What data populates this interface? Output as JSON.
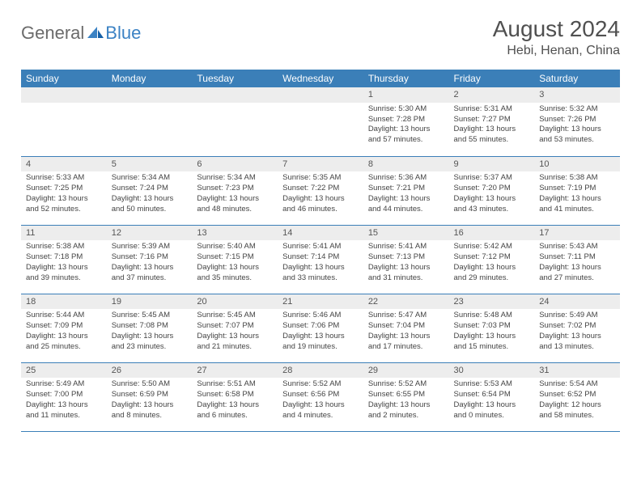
{
  "brand": {
    "name1": "General",
    "name2": "Blue"
  },
  "title": "August 2024",
  "location": "Hebi, Henan, China",
  "colors": {
    "header_bg": "#3b7fb8",
    "header_text": "#ffffff",
    "daynum_bg": "#ededed",
    "row_border": "#3b7fb8",
    "body_text": "#444444",
    "logo_gray": "#6b6b6b",
    "logo_blue": "#3b82c4"
  },
  "weekdays": [
    "Sunday",
    "Monday",
    "Tuesday",
    "Wednesday",
    "Thursday",
    "Friday",
    "Saturday"
  ],
  "weeks": [
    [
      {
        "n": "",
        "t": ""
      },
      {
        "n": "",
        "t": ""
      },
      {
        "n": "",
        "t": ""
      },
      {
        "n": "",
        "t": ""
      },
      {
        "n": "1",
        "t": "Sunrise: 5:30 AM\nSunset: 7:28 PM\nDaylight: 13 hours and 57 minutes."
      },
      {
        "n": "2",
        "t": "Sunrise: 5:31 AM\nSunset: 7:27 PM\nDaylight: 13 hours and 55 minutes."
      },
      {
        "n": "3",
        "t": "Sunrise: 5:32 AM\nSunset: 7:26 PM\nDaylight: 13 hours and 53 minutes."
      }
    ],
    [
      {
        "n": "4",
        "t": "Sunrise: 5:33 AM\nSunset: 7:25 PM\nDaylight: 13 hours and 52 minutes."
      },
      {
        "n": "5",
        "t": "Sunrise: 5:34 AM\nSunset: 7:24 PM\nDaylight: 13 hours and 50 minutes."
      },
      {
        "n": "6",
        "t": "Sunrise: 5:34 AM\nSunset: 7:23 PM\nDaylight: 13 hours and 48 minutes."
      },
      {
        "n": "7",
        "t": "Sunrise: 5:35 AM\nSunset: 7:22 PM\nDaylight: 13 hours and 46 minutes."
      },
      {
        "n": "8",
        "t": "Sunrise: 5:36 AM\nSunset: 7:21 PM\nDaylight: 13 hours and 44 minutes."
      },
      {
        "n": "9",
        "t": "Sunrise: 5:37 AM\nSunset: 7:20 PM\nDaylight: 13 hours and 43 minutes."
      },
      {
        "n": "10",
        "t": "Sunrise: 5:38 AM\nSunset: 7:19 PM\nDaylight: 13 hours and 41 minutes."
      }
    ],
    [
      {
        "n": "11",
        "t": "Sunrise: 5:38 AM\nSunset: 7:18 PM\nDaylight: 13 hours and 39 minutes."
      },
      {
        "n": "12",
        "t": "Sunrise: 5:39 AM\nSunset: 7:16 PM\nDaylight: 13 hours and 37 minutes."
      },
      {
        "n": "13",
        "t": "Sunrise: 5:40 AM\nSunset: 7:15 PM\nDaylight: 13 hours and 35 minutes."
      },
      {
        "n": "14",
        "t": "Sunrise: 5:41 AM\nSunset: 7:14 PM\nDaylight: 13 hours and 33 minutes."
      },
      {
        "n": "15",
        "t": "Sunrise: 5:41 AM\nSunset: 7:13 PM\nDaylight: 13 hours and 31 minutes."
      },
      {
        "n": "16",
        "t": "Sunrise: 5:42 AM\nSunset: 7:12 PM\nDaylight: 13 hours and 29 minutes."
      },
      {
        "n": "17",
        "t": "Sunrise: 5:43 AM\nSunset: 7:11 PM\nDaylight: 13 hours and 27 minutes."
      }
    ],
    [
      {
        "n": "18",
        "t": "Sunrise: 5:44 AM\nSunset: 7:09 PM\nDaylight: 13 hours and 25 minutes."
      },
      {
        "n": "19",
        "t": "Sunrise: 5:45 AM\nSunset: 7:08 PM\nDaylight: 13 hours and 23 minutes."
      },
      {
        "n": "20",
        "t": "Sunrise: 5:45 AM\nSunset: 7:07 PM\nDaylight: 13 hours and 21 minutes."
      },
      {
        "n": "21",
        "t": "Sunrise: 5:46 AM\nSunset: 7:06 PM\nDaylight: 13 hours and 19 minutes."
      },
      {
        "n": "22",
        "t": "Sunrise: 5:47 AM\nSunset: 7:04 PM\nDaylight: 13 hours and 17 minutes."
      },
      {
        "n": "23",
        "t": "Sunrise: 5:48 AM\nSunset: 7:03 PM\nDaylight: 13 hours and 15 minutes."
      },
      {
        "n": "24",
        "t": "Sunrise: 5:49 AM\nSunset: 7:02 PM\nDaylight: 13 hours and 13 minutes."
      }
    ],
    [
      {
        "n": "25",
        "t": "Sunrise: 5:49 AM\nSunset: 7:00 PM\nDaylight: 13 hours and 11 minutes."
      },
      {
        "n": "26",
        "t": "Sunrise: 5:50 AM\nSunset: 6:59 PM\nDaylight: 13 hours and 8 minutes."
      },
      {
        "n": "27",
        "t": "Sunrise: 5:51 AM\nSunset: 6:58 PM\nDaylight: 13 hours and 6 minutes."
      },
      {
        "n": "28",
        "t": "Sunrise: 5:52 AM\nSunset: 6:56 PM\nDaylight: 13 hours and 4 minutes."
      },
      {
        "n": "29",
        "t": "Sunrise: 5:52 AM\nSunset: 6:55 PM\nDaylight: 13 hours and 2 minutes."
      },
      {
        "n": "30",
        "t": "Sunrise: 5:53 AM\nSunset: 6:54 PM\nDaylight: 13 hours and 0 minutes."
      },
      {
        "n": "31",
        "t": "Sunrise: 5:54 AM\nSunset: 6:52 PM\nDaylight: 12 hours and 58 minutes."
      }
    ]
  ]
}
